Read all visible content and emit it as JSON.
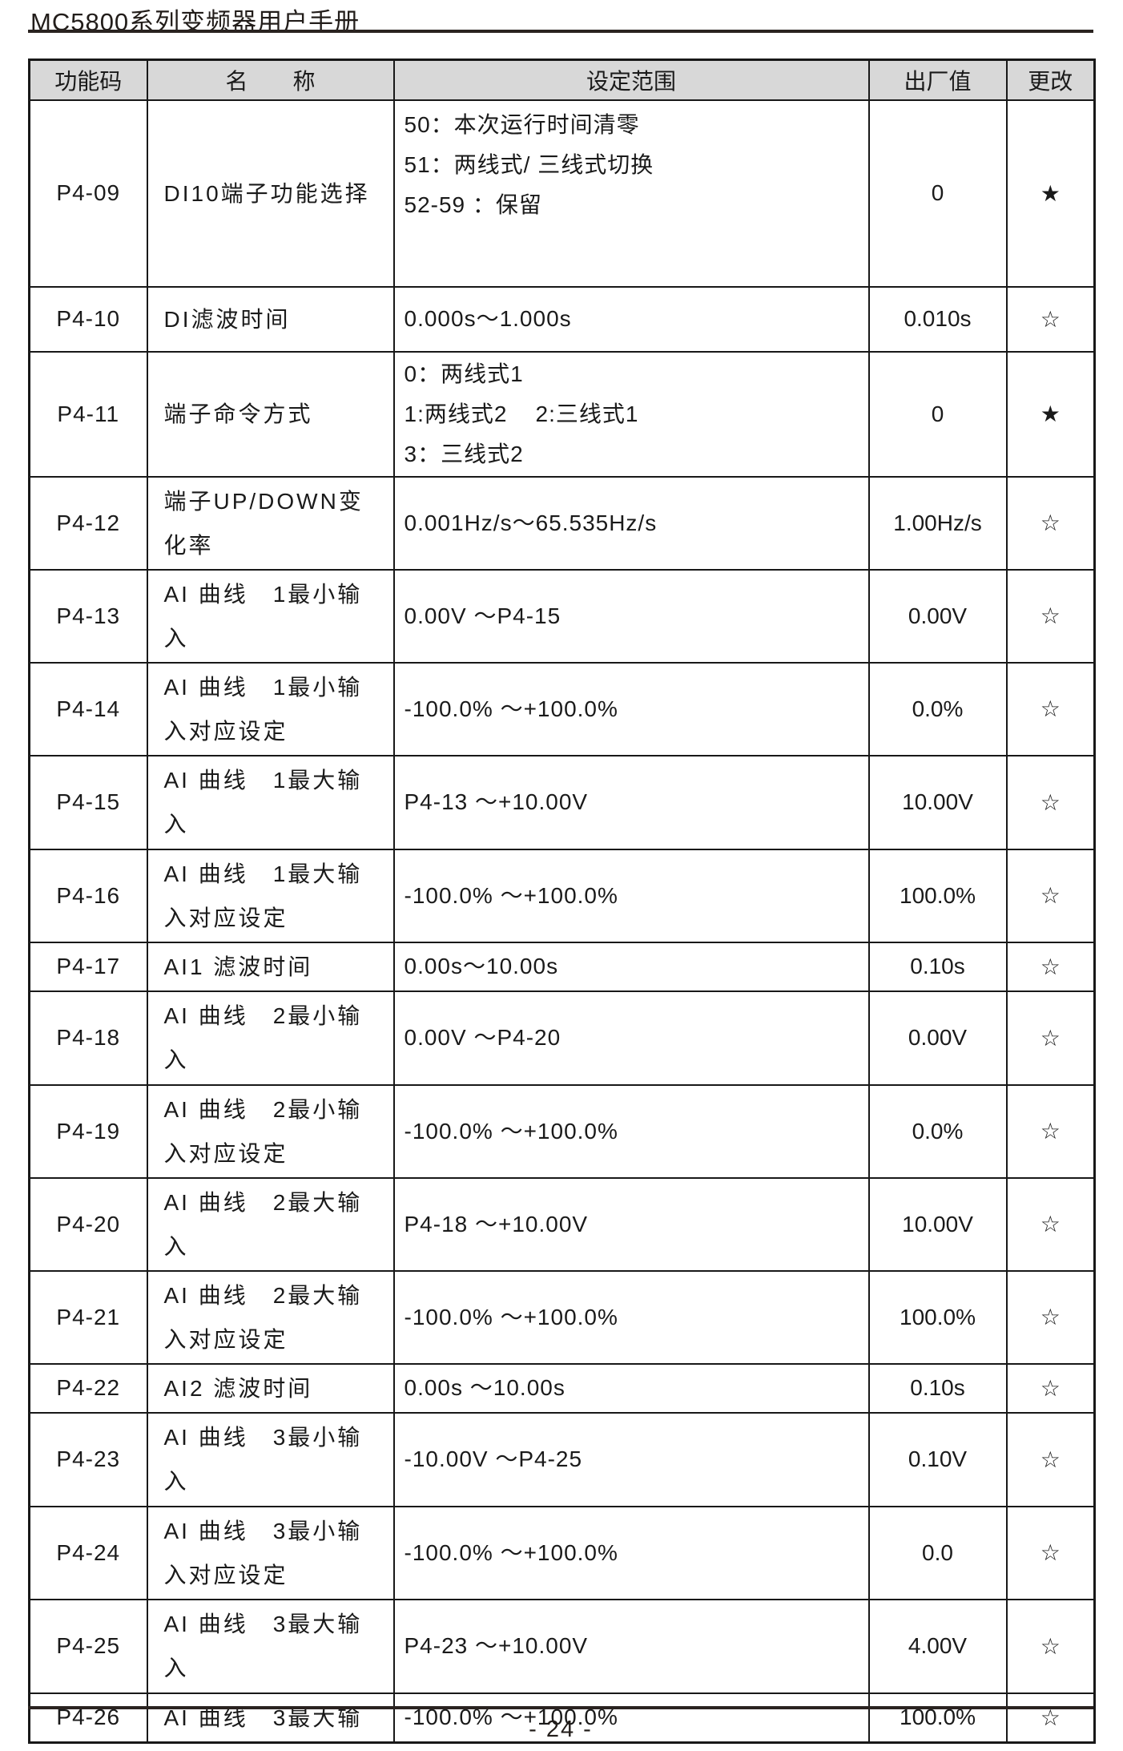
{
  "page": {
    "title": "MC5800系列变频器用户手册",
    "page_number": "- 24 -"
  },
  "table": {
    "headers": [
      "功能码",
      "名　　称",
      "设定范围",
      "出厂值",
      "更改"
    ],
    "change_symbols": {
      "modifiable_stopped_only": "★",
      "modifiable_running": "☆"
    },
    "rows": [
      {
        "code": "P4-09",
        "name_lines": [
          "DI10端子功能选择"
        ],
        "range_lines": [
          "50：本次运行时间清零",
          "51：两线式/ 三线式切换",
          "52-59 ：保留"
        ],
        "default": "0",
        "change": "★",
        "range_top": true
      },
      {
        "code": "P4-10",
        "name_lines": [
          "DI滤波时间"
        ],
        "range_lines": [
          "0.000s～1.000s"
        ],
        "default": "0.010s",
        "change": "☆"
      },
      {
        "code": "P4-11",
        "name_lines": [
          "端子命令方式"
        ],
        "range_lines": [
          "0：两线式1",
          "1:两线式2    2:三线式1",
          "3：三线式2"
        ],
        "default": "0",
        "change": "★"
      },
      {
        "code": "P4-12",
        "name_lines": [
          "端子UP/DOWN变",
          "化率"
        ],
        "range_lines": [
          "0.001Hz/s～65.535Hz/s"
        ],
        "default": "1.00Hz/s",
        "change": "☆"
      },
      {
        "code": "P4-13",
        "name_lines": [
          "AI 曲线　1最小输",
          "入"
        ],
        "range_lines": [
          "0.00V ～P4-15"
        ],
        "default": "0.00V",
        "change": "☆"
      },
      {
        "code": "P4-14",
        "name_lines": [
          "AI 曲线　1最小输",
          "入对应设定"
        ],
        "range_lines": [
          "-100.0% ～+100.0%"
        ],
        "default": "0.0%",
        "change": "☆"
      },
      {
        "code": "P4-15",
        "name_lines": [
          "AI 曲线　1最大输",
          "入"
        ],
        "range_lines": [
          "P4-13 ～+10.00V"
        ],
        "default": "10.00V",
        "change": "☆"
      },
      {
        "code": "P4-16",
        "name_lines": [
          "AI 曲线　1最大输",
          "入对应设定"
        ],
        "range_lines": [
          "-100.0% ～+100.0%"
        ],
        "default": "100.0%",
        "change": "☆"
      },
      {
        "code": "P4-17",
        "name_lines": [
          "AI1 滤波时间"
        ],
        "range_lines": [
          "0.00s～10.00s"
        ],
        "default": "0.10s",
        "change": "☆"
      },
      {
        "code": "P4-18",
        "name_lines": [
          "AI 曲线　2最小输",
          "入"
        ],
        "range_lines": [
          "0.00V ～P4-20"
        ],
        "default": "0.00V",
        "change": "☆"
      },
      {
        "code": "P4-19",
        "name_lines": [
          "AI 曲线　2最小输",
          "入对应设定"
        ],
        "range_lines": [
          "-100.0% ～+100.0%"
        ],
        "default": "0.0%",
        "change": "☆"
      },
      {
        "code": "P4-20",
        "name_lines": [
          "AI 曲线　2最大输",
          "入"
        ],
        "range_lines": [
          "P4-18 ～+10.00V"
        ],
        "default": "10.00V",
        "change": "☆"
      },
      {
        "code": "P4-21",
        "name_lines": [
          "AI 曲线　2最大输",
          "入对应设定"
        ],
        "range_lines": [
          "-100.0% ～+100.0%"
        ],
        "default": "100.0%",
        "change": "☆"
      },
      {
        "code": "P4-22",
        "name_lines": [
          "AI2 滤波时间"
        ],
        "range_lines": [
          "0.00s ～10.00s"
        ],
        "default": "0.10s",
        "change": "☆"
      },
      {
        "code": "P4-23",
        "name_lines": [
          "AI 曲线　3最小输",
          "入"
        ],
        "range_lines": [
          "-10.00V ～P4-25"
        ],
        "default": "0.10V",
        "change": "☆"
      },
      {
        "code": "P4-24",
        "name_lines": [
          "AI 曲线　3最小输",
          "入对应设定"
        ],
        "range_lines": [
          "-100.0% ～+100.0%"
        ],
        "default": "0.0",
        "change": "☆"
      },
      {
        "code": "P4-25",
        "name_lines": [
          "AI 曲线　3最大输",
          "入"
        ],
        "range_lines": [
          "P4-23 ～+10.00V"
        ],
        "default": "4.00V",
        "change": "☆"
      },
      {
        "code": "P4-26",
        "name_lines": [
          "AI 曲线　3最大输"
        ],
        "range_lines": [
          "-100.0% ～+100.0%"
        ],
        "default": "100.0%",
        "change": "☆"
      }
    ]
  }
}
